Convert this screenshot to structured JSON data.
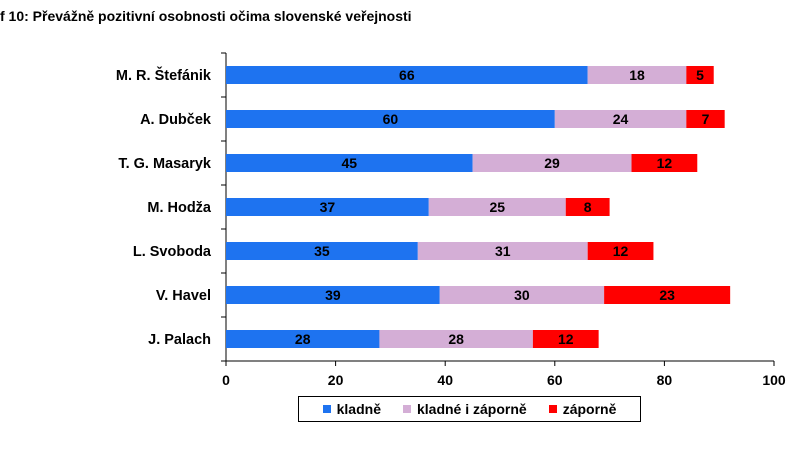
{
  "chart_data": {
    "type": "bar",
    "orientation": "horizontal",
    "stacked": true,
    "title": "f 10: Převážně pozitivní osobnosti očima slovenské veřejnosti",
    "categories": [
      "M. R. Štefánik",
      "A. Dubček",
      "T. G. Masaryk",
      "M. Hodža",
      "L. Svoboda",
      "V. Havel",
      "J. Palach"
    ],
    "series": [
      {
        "name": "kladně",
        "color": "#1e73f0",
        "values": [
          66,
          60,
          45,
          37,
          35,
          39,
          28
        ]
      },
      {
        "name": "kladné i záporně",
        "color": "#d4aed6",
        "values": [
          18,
          24,
          29,
          25,
          31,
          30,
          28
        ]
      },
      {
        "name": "záporně",
        "color": "#ff0000",
        "values": [
          5,
          7,
          12,
          8,
          12,
          23,
          12
        ]
      }
    ],
    "xlim": [
      0,
      100
    ],
    "xticks": [
      0,
      20,
      40,
      60,
      80,
      100
    ],
    "grid": false,
    "legend": "bottom"
  }
}
